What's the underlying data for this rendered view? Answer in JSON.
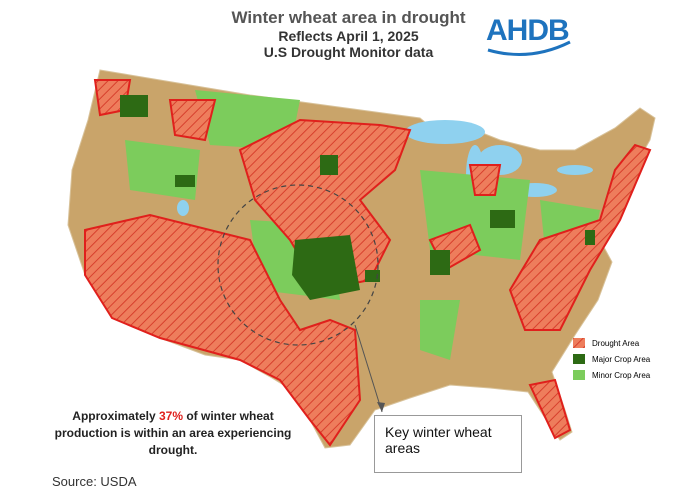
{
  "header": {
    "title": "Winter wheat area in drought",
    "subtitle_lines": [
      "Reflects April 1, 2025",
      "U.S Drought Monitor data"
    ]
  },
  "logo": "AHDB",
  "legend": [
    {
      "label": "Drought Area"
    },
    {
      "label": "Major Crop Area"
    },
    {
      "label": "Minor Crop Area"
    }
  ],
  "annotation": {
    "parts": [
      "Approximately ",
      "37%",
      " of winter wheat production is within an area experiencing drought."
    ]
  },
  "callout": "Key winter wheat areas",
  "source": "Source: USDA"
}
